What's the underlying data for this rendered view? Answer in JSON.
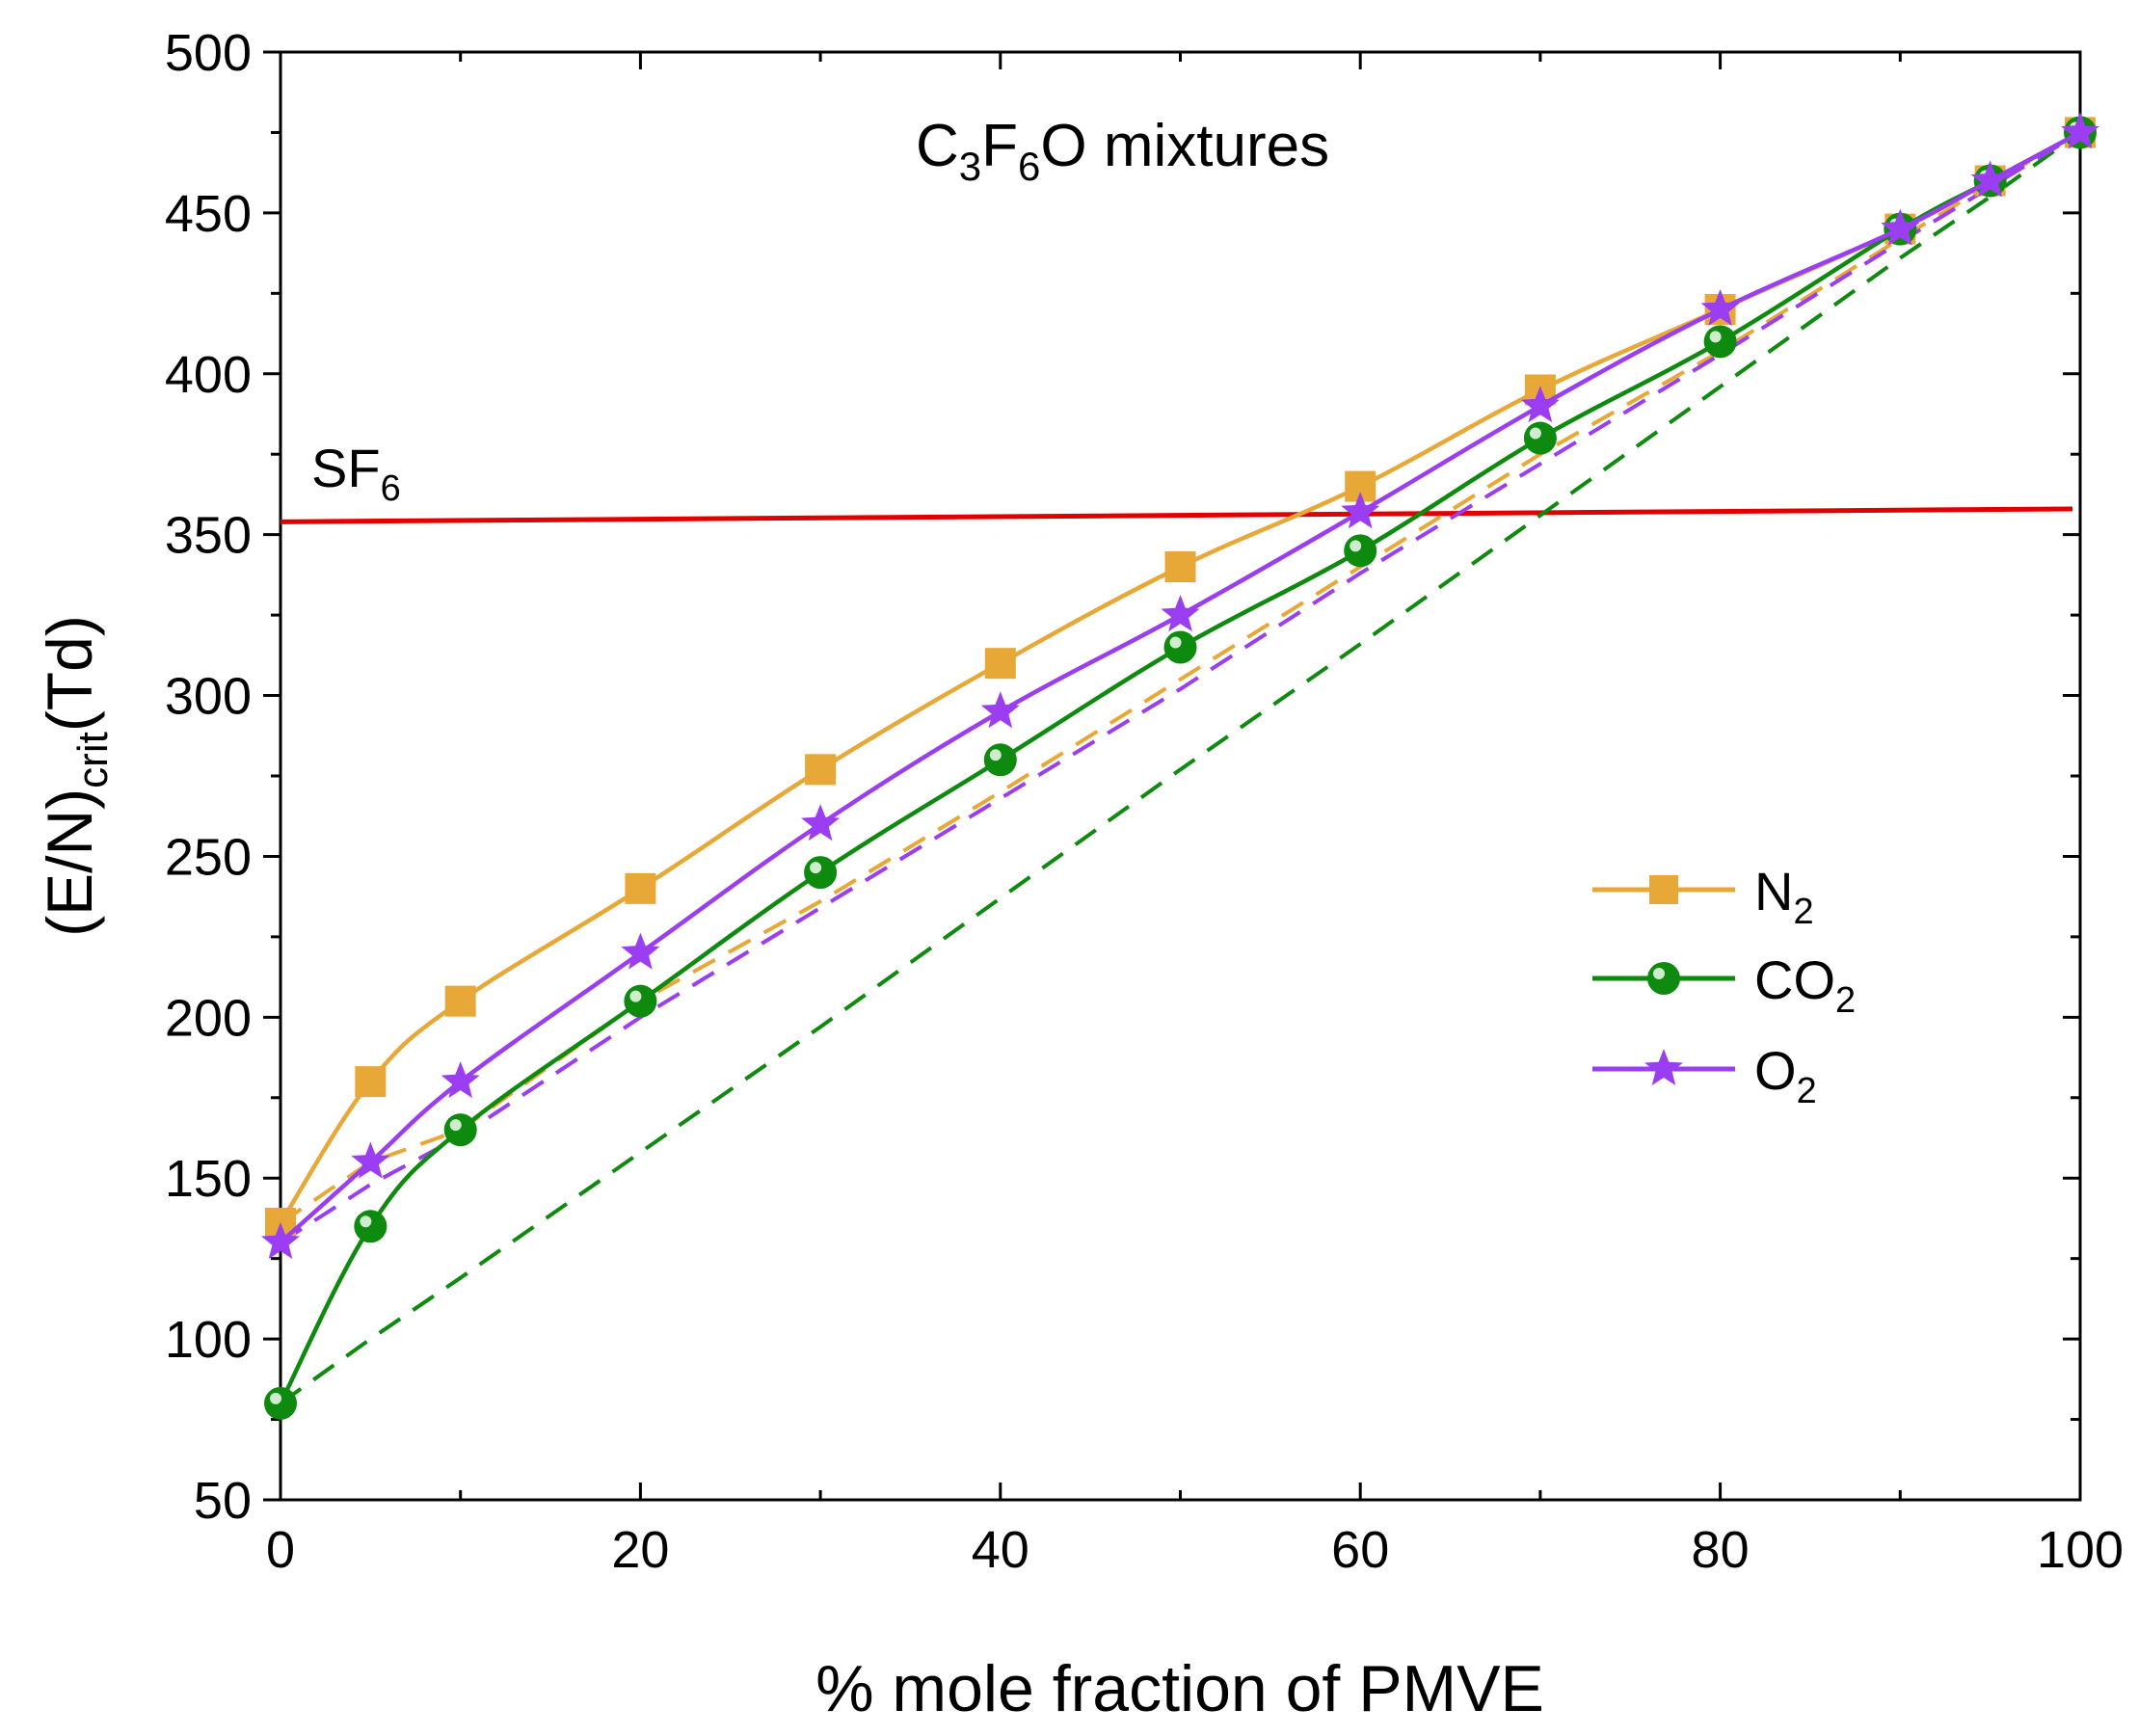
{
  "chart_data": {
    "type": "line",
    "title_parts": {
      "main1": "C",
      "sub1": "3",
      "main2": "F",
      "sub2": "6",
      "main3": "O mixtures"
    },
    "xlabel": "% mole fraction of PMVE",
    "ylabel_parts": {
      "main": "(E/N)",
      "sub": "crit",
      "unit": "(Td)"
    },
    "xlim": [
      0,
      100
    ],
    "ylim": [
      50,
      500
    ],
    "xticks": [
      0,
      20,
      40,
      60,
      80,
      100
    ],
    "yticks": [
      50,
      100,
      150,
      200,
      250,
      300,
      350,
      400,
      450,
      500
    ],
    "xtick_labels": [
      "0",
      "20",
      "40",
      "60",
      "80",
      "100"
    ],
    "ytick_labels": [
      "50",
      "100",
      "150",
      "200",
      "250",
      "300",
      "350",
      "400",
      "450",
      "500"
    ],
    "reference_line": {
      "label_main": "SF",
      "label_sub": "6",
      "y_start": 354,
      "y_end": 358,
      "color": "#e00000"
    },
    "series": [
      {
        "name": "N2",
        "label_main": "N",
        "label_sub": "2",
        "color": "#e8a838",
        "marker": "square",
        "x": [
          0,
          5,
          10,
          20,
          30,
          40,
          50,
          60,
          70,
          80,
          90,
          95,
          100
        ],
        "values": [
          136,
          180,
          205,
          240,
          277,
          310,
          340,
          365,
          395,
          420,
          445,
          460,
          475
        ],
        "dashed": [
          136,
          155,
          165,
          205,
          236,
          270,
          305,
          340,
          375,
          407,
          442,
          459,
          475
        ]
      },
      {
        "name": "CO2",
        "label_main": "CO",
        "label_sub": "2",
        "color": "#0e8a0e",
        "marker": "circle",
        "x": [
          0,
          5,
          10,
          20,
          30,
          40,
          50,
          60,
          70,
          80,
          90,
          95,
          100
        ],
        "values": [
          80,
          135,
          165,
          205,
          245,
          280,
          315,
          345,
          380,
          410,
          445,
          460,
          475
        ],
        "dashed": [
          80,
          100,
          119,
          158,
          197,
          237,
          277,
          316,
          356,
          396,
          436,
          455,
          475
        ]
      },
      {
        "name": "O2",
        "label_main": "O",
        "label_sub": "2",
        "color": "#9b3df0",
        "marker": "star",
        "x": [
          0,
          5,
          10,
          20,
          30,
          40,
          50,
          60,
          70,
          80,
          90,
          95,
          100
        ],
        "values": [
          130,
          155,
          180,
          220,
          260,
          295,
          325,
          357,
          390,
          420,
          445,
          460,
          475
        ],
        "dashed": [
          130,
          148,
          163,
          200,
          234,
          268,
          302,
          338,
          372,
          406,
          441,
          458,
          475
        ]
      }
    ],
    "legend_position": "center-right"
  }
}
